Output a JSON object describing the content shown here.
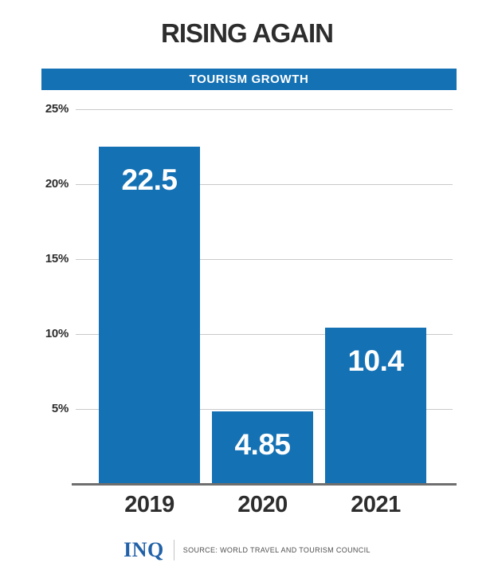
{
  "page": {
    "title": "RISING AGAIN",
    "banner_label": "TOURISM GROWTH"
  },
  "chart_data": {
    "type": "bar",
    "title": "RISING AGAIN",
    "subtitle": "TOURISM GROWTH",
    "categories": [
      "2019",
      "2020",
      "2021"
    ],
    "values": [
      22.5,
      4.85,
      10.4
    ],
    "value_labels": [
      "22.5",
      "4.85",
      "10.4"
    ],
    "xlabel": "",
    "ylabel": "",
    "y_ticks": [
      "25%",
      "20%",
      "15%",
      "10%",
      "5%"
    ],
    "y_tick_values": [
      25,
      20,
      15,
      10,
      5
    ],
    "ylim": [
      0,
      26.5
    ],
    "grid": true,
    "legend": "none",
    "bar_color": "#1471b4",
    "value_label_color": "#ffffff"
  },
  "footer": {
    "logo": "INQ",
    "source": "SOURCE: WORLD TRAVEL AND TOURISM COUNCIL"
  },
  "colors": {
    "accent_blue": "#1471b4",
    "logo_blue": "#2161a8",
    "text_dark": "#2d2d2d",
    "gridline": "#c9c9c9",
    "baseline": "#6e6e6e"
  }
}
